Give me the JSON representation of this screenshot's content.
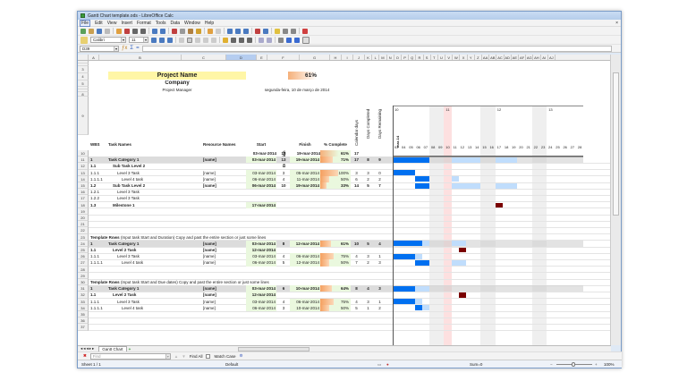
{
  "window": {
    "title": "Gantt Chart template.ods - LibreOffice Calc",
    "close_glyph": "×"
  },
  "menu": [
    "File",
    "Edit",
    "View",
    "Insert",
    "Format",
    "Tools",
    "Data",
    "Window",
    "Help"
  ],
  "toolbar": {
    "font_name": "Calibri",
    "font_size": "11",
    "name_box": "D39"
  },
  "columns": [
    "A",
    "B",
    "C",
    "D",
    "E",
    "F",
    "G",
    "H",
    "I",
    "J",
    "K",
    "L",
    "M",
    "N",
    "O",
    "P",
    "Q",
    "R",
    "S",
    "T",
    "U",
    "V",
    "W",
    "X",
    "Y",
    "Z",
    "AA",
    "AB",
    "AC",
    "AD",
    "AE",
    "AF",
    "AG",
    "AH",
    "AI",
    "AJ"
  ],
  "header": {
    "project_name": "Project Name",
    "company": "Company",
    "project_manager": "Project Manager",
    "overall_pct": "61%",
    "date_text": "segunda-feira, 10 de março de 2014"
  },
  "table_headers": {
    "wbs": "WBS",
    "task": "Task Names",
    "resource": "Resource Names",
    "start": "Start",
    "duration": "Duration",
    "finish": "Finish",
    "pct": "% Complete",
    "cal_days": "Calendar days",
    "days_done": "Days Completed",
    "days_rem": "Days Remaining"
  },
  "summary_row": {
    "row": "10",
    "start": "03-mar-2014",
    "duration": "13",
    "finish": "19-mar-2014",
    "pct": "61%",
    "cal": "17"
  },
  "timeline": {
    "week_labels": [
      "10",
      "11",
      "12",
      "13"
    ],
    "month_label": "mar-14",
    "days": [
      "03",
      "04",
      "05",
      "06",
      "07",
      "08",
      "09",
      "10",
      "11",
      "12",
      "13",
      "14",
      "15",
      "16",
      "17",
      "18",
      "19",
      "20",
      "21",
      "22",
      "23",
      "24",
      "25",
      "26",
      "27",
      "28"
    ]
  },
  "rows": [
    {
      "n": "11",
      "wbs": "1",
      "task": "Task Category 1",
      "res": "[name]",
      "start": "03-mar-2014",
      "dur": "13",
      "finish": "19-mar-2014",
      "pct": "71%",
      "cal": "17",
      "done": "8",
      "rem": "9",
      "style": "cat",
      "indent": 1
    },
    {
      "n": "12",
      "wbs": "1.1",
      "task": "Sub Task Level 2",
      "res": "",
      "start": "",
      "dur": "",
      "finish": "",
      "pct": "",
      "cal": "",
      "done": "",
      "rem": "",
      "style": "bold",
      "indent": 2
    },
    {
      "n": "13",
      "wbs": "1.1.1",
      "task": "Level 3 Task",
      "res": "[name]",
      "start": "03-mar-2014",
      "dur": "3",
      "finish": "05-mar-2014",
      "pct": "100%",
      "cal": "3",
      "done": "3",
      "rem": "0",
      "style": "",
      "indent": 3
    },
    {
      "n": "14",
      "wbs": "1.1.1.1",
      "task": "Level 4 task",
      "res": "[name]",
      "start": "06-mar-2014",
      "dur": "4",
      "finish": "11-mar-2014",
      "pct": "50%",
      "cal": "6",
      "done": "2",
      "rem": "2",
      "style": "",
      "indent": 4
    },
    {
      "n": "15",
      "wbs": "1.2",
      "task": "Sub Task Level 2",
      "res": "[name]",
      "start": "06-mar-2014",
      "dur": "10",
      "finish": "19-mar-2014",
      "pct": "33%",
      "cal": "14",
      "done": "5",
      "rem": "7",
      "style": "bold",
      "indent": 2
    },
    {
      "n": "16",
      "wbs": "1.2.1",
      "task": "Level 3 Task",
      "res": "",
      "start": "",
      "dur": "",
      "finish": "",
      "pct": "",
      "cal": "",
      "done": "",
      "rem": "",
      "style": "",
      "indent": 3
    },
    {
      "n": "17",
      "wbs": "1.2.2",
      "task": "Level 3 Task",
      "res": "",
      "start": "",
      "dur": "",
      "finish": "",
      "pct": "",
      "cal": "",
      "done": "",
      "rem": "",
      "style": "",
      "indent": 3
    },
    {
      "n": "18",
      "wbs": "1.3",
      "task": "Milestone 1",
      "res": "",
      "start": "17-mar-2014",
      "dur": "",
      "finish": "",
      "pct": "",
      "cal": "",
      "done": "",
      "rem": "",
      "style": "bold",
      "indent": 2
    },
    {
      "n": "19"
    },
    {
      "n": "20"
    },
    {
      "n": "21"
    },
    {
      "n": "22"
    },
    {
      "n": "23",
      "note_bold": "Template Rows",
      "note": " (Input task Start and Duration)  Copy and past the entire section or just some lines"
    },
    {
      "n": "24",
      "wbs": "1",
      "task": "Task Category 1",
      "res": "[name]",
      "start": "03-mar-2014",
      "dur": "8",
      "finish": "12-mar-2014",
      "pct": "61%",
      "cal": "10",
      "done": "5",
      "rem": "4",
      "style": "cat",
      "indent": 1
    },
    {
      "n": "25",
      "wbs": "1.1",
      "task": "Level 2 Task",
      "res": "[name]",
      "start": "12-mar-2014",
      "dur": "",
      "finish": "",
      "pct": "",
      "cal": "",
      "done": "",
      "rem": "",
      "style": "bold",
      "indent": 2
    },
    {
      "n": "26",
      "wbs": "1.1.1",
      "task": "Level 3 Task",
      "res": "[name]",
      "start": "03-mar-2014",
      "dur": "4",
      "finish": "06-mar-2014",
      "pct": "75%",
      "cal": "4",
      "done": "3",
      "rem": "1",
      "style": "",
      "indent": 3
    },
    {
      "n": "27",
      "wbs": "1.1.1.1",
      "task": "Level 4 task",
      "res": "[name]",
      "start": "06-mar-2014",
      "dur": "5",
      "finish": "12-mar-2014",
      "pct": "50%",
      "cal": "7",
      "done": "2",
      "rem": "3",
      "style": "",
      "indent": 4
    },
    {
      "n": "28"
    },
    {
      "n": "29"
    },
    {
      "n": "30",
      "note_bold": "Template Rows",
      "note": " (Input task Start and Due dates)  Copy and past the entire section or just some lines"
    },
    {
      "n": "31",
      "wbs": "1",
      "task": "Task Category 1",
      "res": "[name]",
      "start": "03-mar-2014",
      "dur": "6",
      "finish": "10-mar-2014",
      "pct": "64%",
      "cal": "8",
      "done": "4",
      "rem": "3",
      "style": "cat",
      "indent": 1
    },
    {
      "n": "32",
      "wbs": "1.1",
      "task": "Level 2 Task",
      "res": "[name]",
      "start": "12-mar-2014",
      "dur": "",
      "finish": "",
      "pct": "",
      "cal": "",
      "done": "",
      "rem": "",
      "style": "bold",
      "indent": 2
    },
    {
      "n": "33",
      "wbs": "1.1.1",
      "task": "Level 3 Task",
      "res": "[name]",
      "start": "03-mar-2014",
      "dur": "4",
      "finish": "06-mar-2014",
      "pct": "75%",
      "cal": "4",
      "done": "3",
      "rem": "1",
      "style": "",
      "indent": 3
    },
    {
      "n": "34",
      "wbs": "1.1.1.1",
      "task": "Level 4 task",
      "res": "[name]",
      "start": "06-mar-2014",
      "dur": "3",
      "finish": "10-mar-2014",
      "pct": "50%",
      "cal": "5",
      "done": "1",
      "rem": "2",
      "style": "",
      "indent": 4
    },
    {
      "n": "35"
    },
    {
      "n": "36"
    },
    {
      "n": "37"
    }
  ],
  "sheet_tabs": {
    "active": "Gantt Chart",
    "add": "+"
  },
  "find": {
    "placeholder": "Find",
    "find_all": "Find All",
    "match_case": "Match Case"
  },
  "status": {
    "sheet": "Sheet 1 / 1",
    "style": "Default",
    "sum": "Sum=0",
    "zoom": "100%"
  },
  "colors": {
    "bar_done": "#0070f0",
    "bar_remaining": "#c0ddfc",
    "milestone": "#7a0000",
    "weekend": "#efefef",
    "today": "#fde0e0",
    "highlight": "#fff6a6",
    "date_bg": "#eaf8de"
  }
}
